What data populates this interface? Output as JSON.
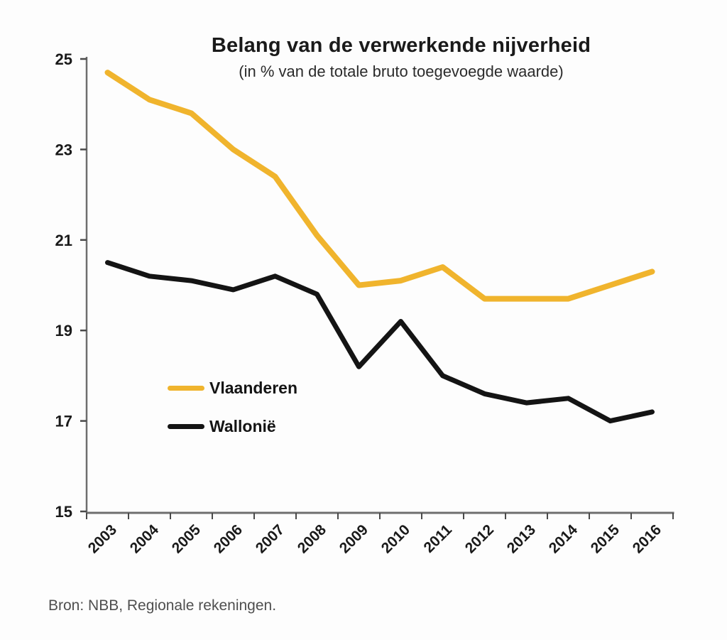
{
  "chart_data": {
    "type": "line",
    "title": "Belang van de verwerkende nijverheid",
    "subtitle": "(in % van de totale bruto toegevoegde waarde)",
    "categories": [
      "2003",
      "2004",
      "2005",
      "2006",
      "2007",
      "2008",
      "2009",
      "2010",
      "2011",
      "2012",
      "2013",
      "2014",
      "2015",
      "2016"
    ],
    "series": [
      {
        "name": "Vlaanderen",
        "color": "#F0B42D",
        "values": [
          24.7,
          24.1,
          23.8,
          23.0,
          22.4,
          21.1,
          20.0,
          20.1,
          20.4,
          19.7,
          19.7,
          19.7,
          20.0,
          20.3
        ]
      },
      {
        "name": "Wallonië",
        "color": "#141414",
        "values": [
          20.5,
          20.2,
          20.1,
          19.9,
          20.2,
          19.8,
          18.2,
          19.2,
          18.0,
          17.6,
          17.4,
          17.5,
          17.0,
          17.2
        ]
      }
    ],
    "xlabel": "",
    "ylabel": "",
    "ylim": [
      15,
      25
    ],
    "yticks": [
      15,
      17,
      19,
      21,
      23,
      25
    ],
    "grid": false,
    "legend_position": "inside-left"
  },
  "source": "Bron: NBB, Regionale rekeningen.",
  "colors": {
    "axis": "#6e6e6e",
    "tick": "#4a4a4a",
    "tick_label": "#1a1a1a",
    "title_text": "#1a1a1a",
    "subtitle_text": "#2b2b2b",
    "source_text": "#4f4f4f"
  }
}
